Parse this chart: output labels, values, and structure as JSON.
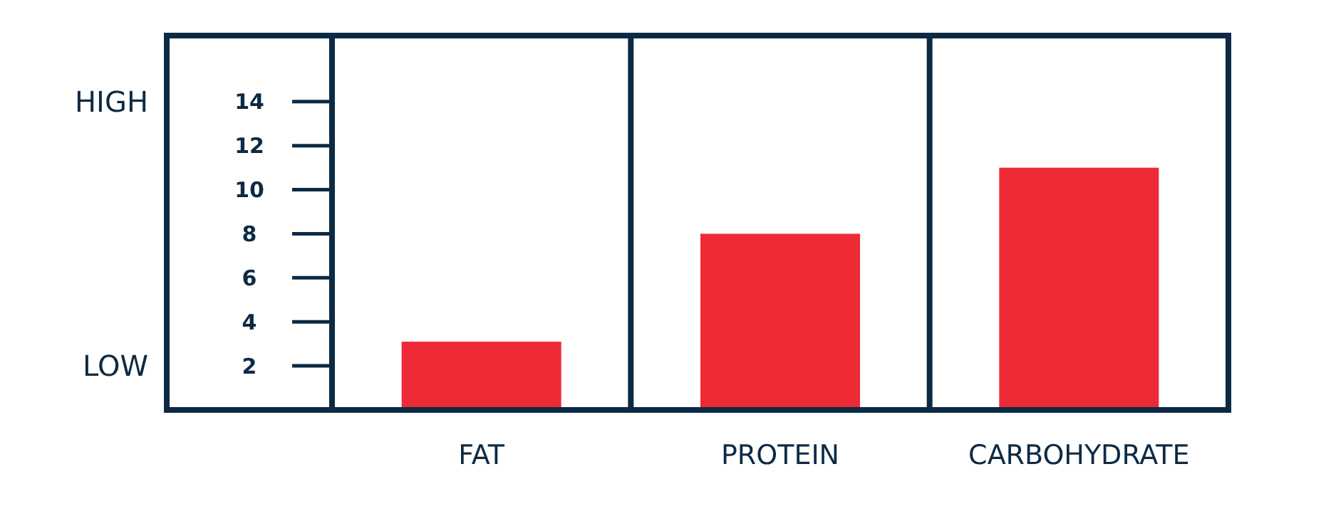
{
  "chart_data": {
    "type": "bar",
    "categories": [
      "FAT",
      "PROTEIN",
      "CARBOHYDRATE"
    ],
    "values": [
      3.1,
      8,
      11
    ],
    "color": "#ee2a37",
    "ylim": [
      0,
      17
    ],
    "yticks": [
      2,
      4,
      6,
      8,
      10,
      12,
      14
    ],
    "annotations": [
      "HIGH",
      "LOW"
    ]
  }
}
